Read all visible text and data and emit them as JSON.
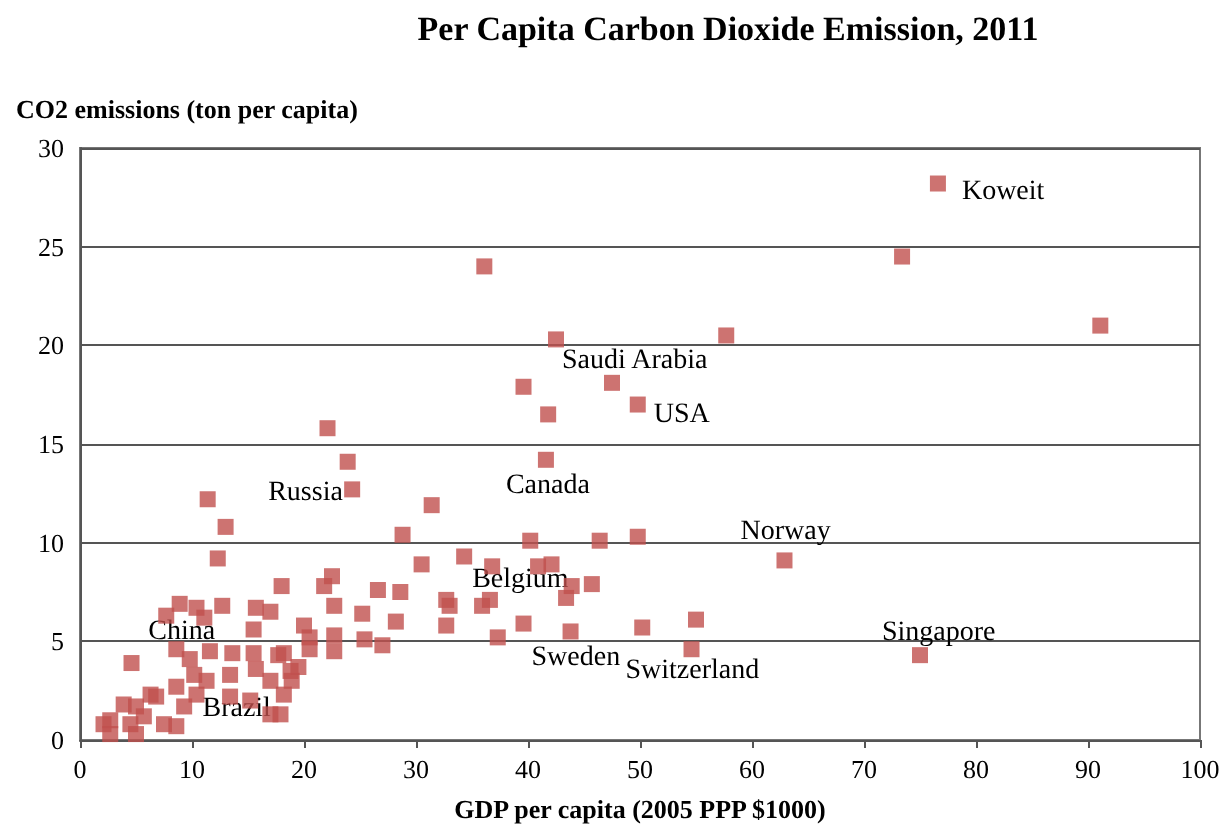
{
  "chart_data": {
    "type": "scatter",
    "title": "Per Capita Carbon Dioxide Emission, 2011",
    "xlabel": "GDP per capita (2005 PPP $1000)",
    "ylabel": "CO2 emissions (ton per capita)",
    "x": [
      76.6,
      73.4,
      91.1,
      36.1,
      42.5,
      57.7,
      39.6,
      47.5,
      41.8,
      49.8,
      22.1,
      23.9,
      24.3,
      41.6,
      31.4,
      28.8,
      40.2,
      46.4,
      49.8,
      30.5,
      34.3,
      36.8,
      40.9,
      42.1,
      43.9,
      45.7,
      43.4,
      26.6,
      28.6,
      22.5,
      21.8,
      22.7,
      25.2,
      28.2,
      32.7,
      33.0,
      35.9,
      36.6,
      32.7,
      39.6,
      43.8,
      37.3,
      50.2,
      27.0,
      20.0,
      20.5,
      22.7,
      22.7,
      20.5,
      18.2,
      19.5,
      18.9,
      18.2,
      17.9,
      62.9,
      55.0,
      54.6,
      75.0,
      11.4,
      13.0,
      12.3,
      18.0,
      8.9,
      10.4,
      12.7,
      7.7,
      11.1,
      15.7,
      17.0,
      15.5,
      11.6,
      13.6,
      15.5,
      17.7,
      4.6,
      13.4,
      15.7,
      17.0,
      18.8,
      10.2,
      8.6,
      6.8,
      6.3,
      10.4,
      13.4,
      15.2,
      17.0,
      9.3,
      5.0,
      3.9,
      2.7,
      2.1,
      4.5,
      7.5,
      5.7,
      2.7,
      5.0,
      8.6,
      25.4,
      9.8,
      11.3,
      8.6
    ],
    "values": [
      28.2,
      24.5,
      21.0,
      24.0,
      20.3,
      20.5,
      17.9,
      18.1,
      16.5,
      17.0,
      15.8,
      14.1,
      12.7,
      14.2,
      11.9,
      10.4,
      10.1,
      10.1,
      10.3,
      8.9,
      9.3,
      8.8,
      8.8,
      8.9,
      7.8,
      7.9,
      7.2,
      7.6,
      7.5,
      8.3,
      7.8,
      6.8,
      6.4,
      6.0,
      7.1,
      6.8,
      6.8,
      7.1,
      5.8,
      5.9,
      5.5,
      5.2,
      5.7,
      4.8,
      5.8,
      5.2,
      5.3,
      4.5,
      4.6,
      4.4,
      3.7,
      3.0,
      2.3,
      1.3,
      9.1,
      6.1,
      4.6,
      4.3,
      12.2,
      10.8,
      9.2,
      7.8,
      6.9,
      6.7,
      6.8,
      6.3,
      6.2,
      6.7,
      6.5,
      5.6,
      4.5,
      4.4,
      4.4,
      4.3,
      3.9,
      3.3,
      3.6,
      3.0,
      3.5,
      3.3,
      2.7,
      2.2,
      2.3,
      2.3,
      2.2,
      2.0,
      1.3,
      1.7,
      1.7,
      1.8,
      1.0,
      0.8,
      0.8,
      0.8,
      1.2,
      0.3,
      0.3,
      0.7,
      5.1,
      4.1,
      3.0,
      4.6
    ],
    "color": "#c0504d",
    "marker": "square",
    "xlim": [
      0,
      100
    ],
    "ylim": [
      0,
      30
    ],
    "xticks": [
      0,
      10,
      20,
      30,
      40,
      50,
      60,
      70,
      80,
      90,
      100
    ],
    "yticks": [
      0,
      5,
      10,
      15,
      20,
      25,
      30
    ],
    "grid": "y",
    "annotations": [
      {
        "text": "Koweit",
        "x": 76.6,
        "y": 28.2
      },
      {
        "text": "Saudi Arabia",
        "x": 42.5,
        "y": 20.3
      },
      {
        "text": "USA",
        "x": 49.8,
        "y": 17.0
      },
      {
        "text": "Canada",
        "x": 41.6,
        "y": 14.2
      },
      {
        "text": "Russia",
        "x": 24.3,
        "y": 12.7
      },
      {
        "text": "Norway",
        "x": 62.9,
        "y": 9.1
      },
      {
        "text": "Belgium",
        "x": 36.8,
        "y": 8.8
      },
      {
        "text": "China",
        "x": 7.7,
        "y": 6.3
      },
      {
        "text": "Sweden",
        "x": 39.6,
        "y": 5.9
      },
      {
        "text": "Switzerland",
        "x": 54.6,
        "y": 4.6
      },
      {
        "text": "Singapore",
        "x": 75.0,
        "y": 4.3
      },
      {
        "text": "Brazil",
        "x": 10.4,
        "y": 2.3
      }
    ]
  }
}
